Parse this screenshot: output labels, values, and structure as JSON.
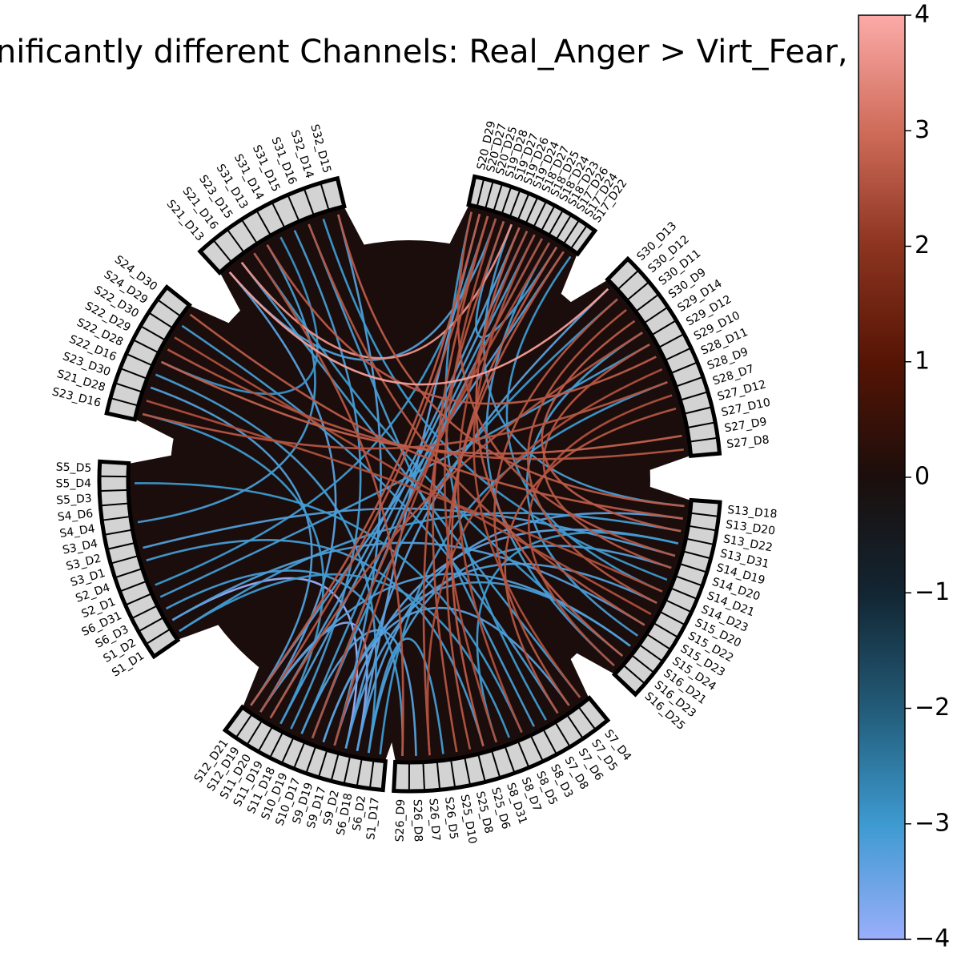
{
  "title": "Significantly different Channels: Real_Anger > Virt_Fear, t",
  "colorbar": {
    "ticks": [
      "4",
      "3",
      "2",
      "1",
      "0",
      "−1",
      "−2",
      "−3",
      "−4"
    ],
    "min": -4,
    "max": 4,
    "stops": [
      {
        "v": 4,
        "c": "#fcaaa8"
      },
      {
        "v": 3,
        "c": "#cf6c5a"
      },
      {
        "v": 2,
        "c": "#8c3420"
      },
      {
        "v": 1,
        "c": "#561404"
      },
      {
        "v": 0,
        "c": "#1b0e0c"
      },
      {
        "v": -1,
        "c": "#122532"
      },
      {
        "v": -2,
        "c": "#225b78"
      },
      {
        "v": -3,
        "c": "#3d9ad0"
      },
      {
        "v": -4,
        "c": "#9aaefc"
      }
    ]
  },
  "colors": {
    "background": "#1b0d0b",
    "node_fill": "#d3d3d3",
    "node_stroke": "#000000"
  },
  "groups": [
    {
      "labels": [
        "S5_D5",
        "S5_D4",
        "S5_D3",
        "S4_D6",
        "S4_D4",
        "S3_D4",
        "S3_D2",
        "S3_D1",
        "S2_D4",
        "S2_D1",
        "S6_D31",
        "S6_D3",
        "S1_D2",
        "S1_D1"
      ]
    },
    {
      "labels": [
        "S24_D30",
        "S24_D29",
        "S22_D30",
        "S22_D29",
        "S22_D28",
        "S22_D16",
        "S23_D30",
        "S21_D28",
        "S23_D16"
      ]
    },
    {
      "labels": [
        "S32_D15",
        "S32_D14",
        "S31_D16",
        "S31_D15",
        "S31_D14",
        "S31_D13",
        "S23_D15",
        "S21_D16",
        "S21_D13"
      ]
    },
    {
      "labels": [
        "S20_D29",
        "S20_D27",
        "S20_D25",
        "S19_D28",
        "S19_D27",
        "S19_D26",
        "S19_D24",
        "S18_D27",
        "S18_D25",
        "S18_D24",
        "S18_D23",
        "S17_D26",
        "S17_D24",
        "S17_D22"
      ]
    },
    {
      "labels": [
        "S30_D13",
        "S30_D12",
        "S30_D11",
        "S30_D9",
        "S29_D14",
        "S29_D12",
        "S29_D10",
        "S28_D11",
        "S28_D9",
        "S28_D7",
        "S27_D12",
        "S27_D10",
        "S27_D9",
        "S27_D8"
      ]
    },
    {
      "labels": [
        "S13_D18",
        "S13_D20",
        "S13_D22",
        "S13_D31",
        "S14_D19",
        "S14_D20",
        "S14_D21",
        "S14_D23",
        "S15_D20",
        "S15_D22",
        "S15_D23",
        "S15_D24",
        "S16_D21",
        "S16_D23",
        "S16_D25"
      ]
    },
    {
      "labels": [
        "S7_D4",
        "S7_D5",
        "S7_D6",
        "S7_D8",
        "S8_D3",
        "S8_D5",
        "S8_D7",
        "S8_D31",
        "S25_D6",
        "S25_D8",
        "S25_D10",
        "S26_D5",
        "S26_D7",
        "S26_D8",
        "S26_D9"
      ]
    },
    {
      "labels": [
        "S1_D17",
        "S6_D2",
        "S6_D18",
        "S9_D2",
        "S9_D17",
        "S9_D19",
        "S10_D17",
        "S10_D19",
        "S11_D18",
        "S11_D19",
        "S11_D20",
        "S12_D19",
        "S12_D21"
      ]
    }
  ],
  "links": [
    [
      "S9_D2",
      "S1_D2",
      -4
    ],
    [
      "S6_D18",
      "S12_D19",
      -3.8
    ],
    [
      "S6_D18",
      "S20_D27",
      -3.4
    ],
    [
      "S9_D2",
      "S30_D13",
      -3.3
    ],
    [
      "S6_D18",
      "S13_D20",
      -3.3
    ],
    [
      "S9_D17",
      "S32_D15",
      -3.2
    ],
    [
      "S6_D2",
      "S22_D16",
      -3.1
    ],
    [
      "S9_D19",
      "S16_D21",
      -3.1
    ],
    [
      "S10_D17",
      "S18_D24",
      -3.2
    ],
    [
      "S10_D19",
      "S26_D8",
      -3.3
    ],
    [
      "S11_D18",
      "S31_D15",
      -3.1
    ],
    [
      "S11_D20",
      "S19_D24",
      -3.2
    ],
    [
      "S12_D19",
      "S21_D13",
      -3.3
    ],
    [
      "S12_D21",
      "S17_D24",
      -3.2
    ],
    [
      "S9_D17",
      "S13_D31",
      -3.4
    ],
    [
      "S6_D2",
      "S14_D20",
      -3.2
    ],
    [
      "S1_D17",
      "S28_D9",
      -3.0
    ],
    [
      "S9_D19",
      "S7_D5",
      -3.3
    ],
    [
      "S1_D1",
      "S13_D22",
      -3.1
    ],
    [
      "S1_D2",
      "S15_D23",
      -3.2
    ],
    [
      "S6_D3",
      "S26_D9",
      -3.1
    ],
    [
      "S2_D1",
      "S20_D25",
      -3.0
    ],
    [
      "S3_D2",
      "S14_D19",
      -3.2
    ],
    [
      "S4_D4",
      "S31_D13",
      -3.1
    ],
    [
      "S5_D4",
      "S8_D5",
      -3.0
    ],
    [
      "S6_D31",
      "S29_D12",
      -3.1
    ],
    [
      "S24_D29",
      "S7_D6",
      -3.1
    ],
    [
      "S23_D30",
      "S12_D21",
      -3.2
    ],
    [
      "S22_D28",
      "S31_D14",
      -2.9
    ],
    [
      "S31_D16",
      "S8_D3",
      -3.1
    ],
    [
      "S23_D15",
      "S16_D23",
      -3.0
    ],
    [
      "S21_D13",
      "S19_D28",
      -3.2
    ],
    [
      "S20_D29",
      "S7_D8",
      -3.0
    ],
    [
      "S19_D26",
      "S13_D18",
      -3.1
    ],
    [
      "S18_D27",
      "S11_D19",
      -3.2
    ],
    [
      "S17_D26",
      "S19_D27",
      -3.1
    ],
    [
      "S17_D22",
      "S14_D23",
      -3.0
    ],
    [
      "S18_D23",
      "S16_D25",
      -3.1
    ],
    [
      "S30_D12",
      "S10_D17",
      -3.0
    ],
    [
      "S29_D14",
      "S15_D24",
      -3.1
    ],
    [
      "S7_D4",
      "S21_D16",
      -3.1
    ],
    [
      "S8_D7",
      "S1_D1",
      -3.0
    ],
    [
      "S25_D6",
      "S3_D1",
      -3.1
    ],
    [
      "S15_D20",
      "S9_D2",
      -3.2
    ],
    [
      "S14_D21",
      "S32_D14",
      -3.0
    ],
    [
      "S13_D31",
      "S8_D31",
      -3.0
    ],
    [
      "S26_D5",
      "S6_D2",
      -3.1
    ],
    [
      "S11_D19",
      "S23_D16",
      -3.0
    ],
    [
      "S10_D19",
      "S18_D25",
      -3.1
    ],
    [
      "S12_D19",
      "S16_D21",
      -3.2
    ],
    [
      "S22_D29",
      "S27_D8",
      2.6
    ],
    [
      "S22_D30",
      "S15_D22",
      2.5
    ],
    [
      "S21_D16",
      "S19_D26",
      3.6
    ],
    [
      "S31_D13",
      "S29_D10",
      2.7
    ],
    [
      "S20_D25",
      "S25_D10",
      2.6
    ],
    [
      "S19_D28",
      "S8_D31",
      2.5
    ],
    [
      "S19_D27",
      "S26_D7",
      2.6
    ],
    [
      "S20_D27",
      "S12_D21",
      2.7
    ],
    [
      "S18_D25",
      "S7_D4",
      2.5
    ],
    [
      "S17_D24",
      "S25_D8",
      2.6
    ],
    [
      "S18_D24",
      "S9_D17",
      2.5
    ],
    [
      "S30_D9",
      "S13_D22",
      2.7
    ],
    [
      "S29_D12",
      "S14_D20",
      2.6
    ],
    [
      "S28_D11",
      "S26_D7",
      2.5
    ],
    [
      "S27_D12",
      "S7_D6",
      2.6
    ],
    [
      "S28_D7",
      "S16_D25",
      2.5
    ],
    [
      "S27_D9",
      "S22_D28",
      2.8
    ],
    [
      "S30_D11",
      "S15_D20",
      2.6
    ],
    [
      "S13_D18",
      "S32_D15",
      2.7
    ],
    [
      "S14_D19",
      "S20_D29",
      2.6
    ],
    [
      "S14_D23",
      "S21_D28",
      2.5
    ],
    [
      "S15_D23",
      "S31_D16",
      2.6
    ],
    [
      "S16_D23",
      "S19_D24",
      2.7
    ],
    [
      "S26_D9",
      "S23_D15",
      2.6
    ],
    [
      "S8_D5",
      "S18_D27",
      2.5
    ],
    [
      "S7_D5",
      "S30_D12",
      2.6
    ],
    [
      "S25_D6",
      "S17_D26",
      2.7
    ],
    [
      "S11_D20",
      "S29_D14",
      2.6
    ],
    [
      "S10_D17",
      "S18_D23",
      2.5
    ],
    [
      "S12_D19",
      "S20_D25",
      2.6
    ],
    [
      "S24_D30",
      "S13_D20",
      2.7
    ],
    [
      "S23_D16",
      "S28_D9",
      2.6
    ],
    [
      "S21_D13",
      "S30_D13",
      3.8
    ]
  ]
}
